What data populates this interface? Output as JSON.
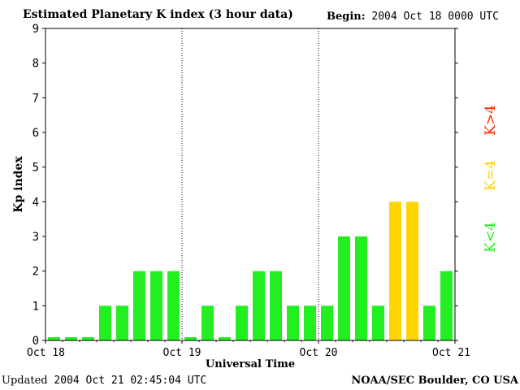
{
  "header": {
    "title": "Estimated Planetary K index (3 hour data)",
    "begin_label": "Begin:",
    "begin_value": "2004 Oct 18 0000 UTC"
  },
  "footer": {
    "updated_label": "Updated",
    "updated_value": "2004 Oct 21 02:45:04 UTC",
    "source": "NOAA/SEC Boulder, CO USA"
  },
  "colors": {
    "low": "#22ee22",
    "storm_threshold": "#ffd400",
    "storm": "#ff2a00"
  },
  "legend": [
    {
      "label": "K>4",
      "color": "#ff2a00"
    },
    {
      "label": "K=4",
      "color": "#ffd400"
    },
    {
      "label": "K<4",
      "color": "#22ee22"
    }
  ],
  "chart_data": {
    "type": "bar",
    "title": "Estimated Planetary K index (3 hour data)",
    "xlabel": "Universal Time",
    "ylabel": "Kp index",
    "ylim": [
      0,
      9
    ],
    "yticks": [
      0,
      1,
      2,
      3,
      4,
      5,
      6,
      7,
      8,
      9
    ],
    "xticks": [
      "Oct 18",
      "Oct 19",
      "Oct 20",
      "Oct 21"
    ],
    "bar_interval_hours": 3,
    "values": [
      0,
      0,
      0,
      1,
      1,
      2,
      2,
      2,
      0,
      1,
      0,
      1,
      2,
      2,
      1,
      1,
      1,
      3,
      3,
      1,
      4,
      4,
      1,
      2
    ],
    "day_dividers": [
      "Oct 19",
      "Oct 20"
    ],
    "grid": false
  }
}
